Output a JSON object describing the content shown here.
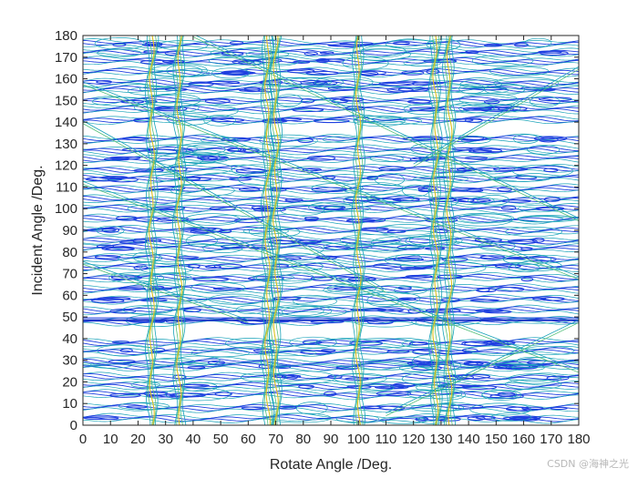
{
  "chart_data": {
    "type": "contour",
    "title": "",
    "xlabel": "Rotate Angle /Deg.",
    "ylabel": "Incident Angle /Deg.",
    "xlim": [
      0,
      180
    ],
    "ylim": [
      0,
      180
    ],
    "xticks": [
      0,
      10,
      20,
      30,
      40,
      50,
      60,
      70,
      80,
      90,
      100,
      110,
      120,
      130,
      140,
      150,
      160,
      170,
      180
    ],
    "yticks": [
      0,
      10,
      20,
      30,
      40,
      50,
      60,
      70,
      80,
      90,
      100,
      110,
      120,
      130,
      140,
      150,
      160,
      170,
      180
    ],
    "grid": false,
    "colors": {
      "low": "#1f3fe0",
      "mid": "#17a2b8",
      "midhigh": "#55c07a",
      "high": "#e0c020",
      "axis": "#262626"
    },
    "vertical_ridges_x": [
      25,
      35,
      67,
      70,
      100,
      128,
      133
    ],
    "horizontal_bands_y": [
      3,
      8,
      14,
      18,
      22,
      27,
      29,
      34,
      38,
      48,
      53,
      58,
      63,
      68,
      73,
      77,
      82,
      85,
      90,
      95,
      100,
      104,
      109,
      114,
      118,
      123,
      127,
      132,
      141,
      146,
      150,
      155,
      158,
      163,
      168,
      172,
      176
    ],
    "diagonal_lines": [
      {
        "x": [
          0,
          180
        ],
        "y": [
          112,
          25
        ]
      },
      {
        "x": [
          0,
          180
        ],
        "y": [
          158,
          68
        ]
      },
      {
        "x": [
          40,
          180
        ],
        "y": [
          180,
          95
        ]
      },
      {
        "x": [
          0,
          110
        ],
        "y": [
          140,
          62
        ]
      },
      {
        "x": [
          0,
          60
        ],
        "y": [
          75,
          48
        ]
      },
      {
        "x": [
          110,
          180
        ],
        "y": [
          5,
          48
        ]
      },
      {
        "x": [
          120,
          180
        ],
        "y": [
          120,
          165
        ]
      }
    ]
  },
  "watermark": "CSDN @海神之光"
}
